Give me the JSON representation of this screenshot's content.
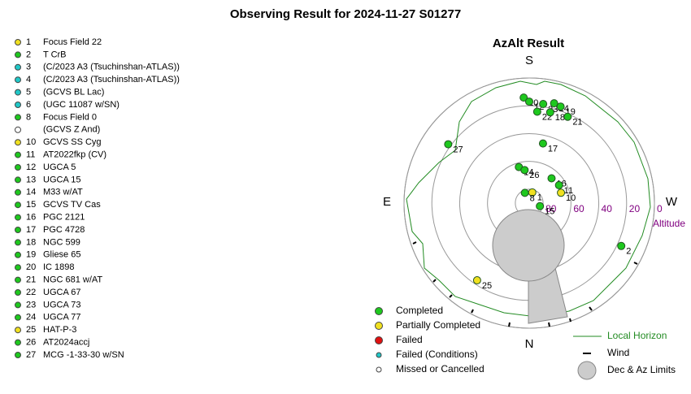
{
  "chart_data": {
    "type": "polar",
    "title": "Observing Result for 2024-11-27 S01277",
    "subtitle": "AzAlt Result",
    "directions": {
      "S": "S",
      "N": "N",
      "E": "E",
      "W": "W"
    },
    "r_label": "Altitude",
    "rlim": [
      90,
      0
    ],
    "rticks": [
      80,
      60,
      40,
      20,
      0
    ],
    "legend": [
      {
        "label": "Completed",
        "color": "#1ec81e"
      },
      {
        "label": "Partially Completed",
        "color": "#f0e020"
      },
      {
        "label": "Failed",
        "color": "#e01010"
      },
      {
        "label": "Failed (Conditions)",
        "color": "#20c8c8"
      },
      {
        "label": "Missed or Cancelled",
        "color": "#ffffff"
      }
    ],
    "extra_legend": [
      "Local Horizon",
      "Wind",
      "Dec & Az Limits"
    ],
    "targets": [
      {
        "number": 1,
        "name": "Focus Field 22",
        "status": "Partially Completed"
      },
      {
        "number": 2,
        "name": "T CrB",
        "status": "Completed"
      },
      {
        "number": 3,
        "name": "(C/2023 A3 (Tsuchinshan-ATLAS))",
        "status": "Failed (Conditions)"
      },
      {
        "number": 4,
        "name": "(C/2023 A3 (Tsuchinshan-ATLAS))",
        "status": "Failed (Conditions)"
      },
      {
        "number": 5,
        "name": "(GCVS BL Lac)",
        "status": "Failed (Conditions)"
      },
      {
        "number": 6,
        "name": "(UGC 11087 w/SN)",
        "status": "Failed (Conditions)"
      },
      {
        "number": 8,
        "name": "Focus Field 0",
        "status": "Completed"
      },
      {
        "number": null,
        "name": "(GCVS Z And)",
        "status": "Missed or Cancelled"
      },
      {
        "number": 10,
        "name": "GCVS SS Cyg",
        "status": "Partially Completed"
      },
      {
        "number": 11,
        "name": "AT2022fkp (CV)",
        "status": "Completed"
      },
      {
        "number": 12,
        "name": "UGCA 5",
        "status": "Completed"
      },
      {
        "number": 13,
        "name": "UGCA 15",
        "status": "Completed"
      },
      {
        "number": 14,
        "name": "M33 w/AT",
        "status": "Completed"
      },
      {
        "number": 15,
        "name": "GCVS TV Cas",
        "status": "Completed"
      },
      {
        "number": 16,
        "name": "PGC 2121",
        "status": "Completed"
      },
      {
        "number": 17,
        "name": "PGC 4728",
        "status": "Completed"
      },
      {
        "number": 18,
        "name": "NGC 599",
        "status": "Completed"
      },
      {
        "number": 19,
        "name": "Gliese 65",
        "status": "Completed"
      },
      {
        "number": 20,
        "name": "IC 1898",
        "status": "Completed"
      },
      {
        "number": 21,
        "name": "NGC 681 w/AT",
        "status": "Completed"
      },
      {
        "number": 22,
        "name": "UGCA 67",
        "status": "Completed"
      },
      {
        "number": 23,
        "name": "UGCA 73",
        "status": "Completed"
      },
      {
        "number": 24,
        "name": "UGCA 77",
        "status": "Completed"
      },
      {
        "number": 25,
        "name": "HAT-P-3",
        "status": "Partially Completed"
      },
      {
        "number": 26,
        "name": "AT2024accj",
        "status": "Completed"
      },
      {
        "number": 27,
        "name": "MCG -1-33-30 w/SN",
        "status": "Completed"
      }
    ],
    "points": [
      {
        "label": 20,
        "az": 177,
        "alt": 14,
        "status": "Completed"
      },
      {
        "label": 12,
        "az": 180,
        "alt": 17,
        "status": "Completed"
      },
      {
        "label": 23,
        "az": 188,
        "alt": 18,
        "status": "Completed"
      },
      {
        "label": 24,
        "az": 194,
        "alt": 16,
        "status": "Completed"
      },
      {
        "label": 19,
        "az": 198,
        "alt": 17,
        "status": "Completed"
      },
      {
        "label": 22,
        "az": 185,
        "alt": 24,
        "status": "Completed"
      },
      {
        "label": 18,
        "az": 193,
        "alt": 23,
        "status": "Completed"
      },
      {
        "label": 21,
        "az": 204,
        "alt": 22,
        "status": "Completed"
      },
      {
        "label": 27,
        "az": 126,
        "alt": 18,
        "status": "Completed"
      },
      {
        "label": 17,
        "az": 193,
        "alt": 46,
        "status": "Completed"
      },
      {
        "label": 14,
        "az": 164,
        "alt": 63,
        "status": "Completed"
      },
      {
        "label": 26,
        "az": 172,
        "alt": 66,
        "status": "Completed"
      },
      {
        "label": 16,
        "az": 222,
        "alt": 66,
        "status": "Completed"
      },
      {
        "label": 11,
        "az": 239,
        "alt": 65,
        "status": "Completed"
      },
      {
        "label": 10,
        "az": 252,
        "alt": 66,
        "status": "Partially Completed"
      },
      {
        "label": 1,
        "az": 196,
        "alt": 82,
        "status": "Partially Completed"
      },
      {
        "label": 8,
        "az": 157,
        "alt": 82,
        "status": "Completed"
      },
      {
        "label": 15,
        "az": 286,
        "alt": 82,
        "status": "Completed"
      },
      {
        "label": 2,
        "az": 295,
        "alt": 17,
        "status": "Completed"
      },
      {
        "label": 25,
        "az": 34,
        "alt": 23,
        "status": "Partially Completed"
      }
    ]
  }
}
